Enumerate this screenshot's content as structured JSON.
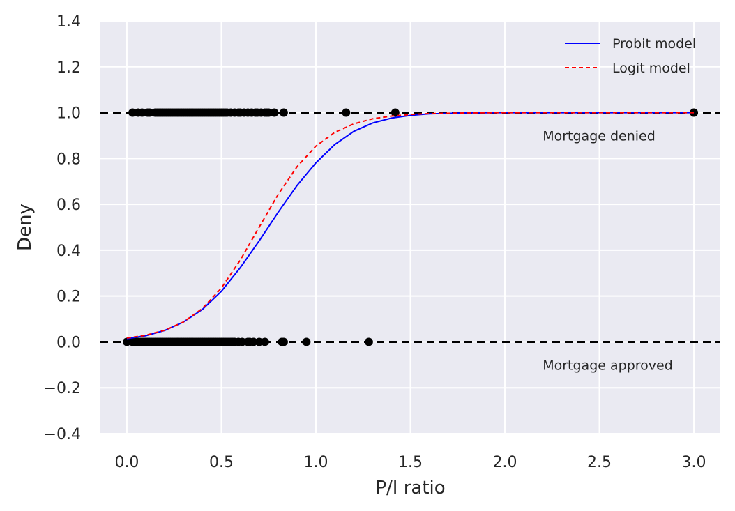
{
  "chart_data": {
    "type": "line",
    "xlabel": "P/I ratio",
    "ylabel": "Deny",
    "xlim": [
      -0.14,
      3.14
    ],
    "ylim": [
      -0.4,
      1.4
    ],
    "xticks": [
      0.0,
      0.5,
      1.0,
      1.5,
      2.0,
      2.5,
      3.0
    ],
    "xtick_labels": [
      "0.0",
      "0.5",
      "1.0",
      "1.5",
      "2.0",
      "2.5",
      "3.0"
    ],
    "yticks": [
      -0.4,
      -0.2,
      0.0,
      0.2,
      0.4,
      0.6,
      0.8,
      1.0,
      1.2,
      1.4
    ],
    "ytick_labels": [
      "−0.4",
      "−0.2",
      "0.0",
      "0.2",
      "0.4",
      "0.6",
      "0.8",
      "1.0",
      "1.2",
      "1.4"
    ],
    "grid": true,
    "background": "#eaeaf2",
    "legend_position": "top-right",
    "series": [
      {
        "name": "Probit model",
        "color": "#0000ff",
        "style": "solid",
        "x": [
          0.0,
          0.1,
          0.2,
          0.3,
          0.4,
          0.5,
          0.6,
          0.7,
          0.8,
          0.9,
          1.0,
          1.1,
          1.2,
          1.3,
          1.4,
          1.5,
          1.6,
          1.8,
          2.0,
          2.5,
          3.0
        ],
        "y": [
          0.014,
          0.027,
          0.05,
          0.087,
          0.142,
          0.221,
          0.324,
          0.441,
          0.565,
          0.682,
          0.781,
          0.861,
          0.918,
          0.955,
          0.976,
          0.988,
          0.995,
          0.999,
          1.0,
          1.0,
          1.0
        ]
      },
      {
        "name": "Logit model",
        "color": "#ff0000",
        "style": "dashed",
        "x": [
          0.0,
          0.1,
          0.2,
          0.3,
          0.4,
          0.5,
          0.6,
          0.7,
          0.8,
          0.9,
          1.0,
          1.1,
          1.2,
          1.3,
          1.4,
          1.5,
          1.6,
          1.8,
          2.0,
          2.5,
          3.0
        ],
        "y": [
          0.017,
          0.029,
          0.051,
          0.087,
          0.146,
          0.235,
          0.357,
          0.501,
          0.643,
          0.764,
          0.854,
          0.914,
          0.951,
          0.973,
          0.985,
          0.992,
          0.996,
          0.999,
          1.0,
          1.0,
          1.0
        ]
      }
    ],
    "observations": {
      "color": "#000000",
      "denied": {
        "y": 1.0,
        "x": [
          0.03,
          0.06,
          0.08,
          0.11,
          0.12,
          0.15,
          0.16,
          0.17,
          0.18,
          0.19,
          0.2,
          0.21,
          0.22,
          0.23,
          0.24,
          0.25,
          0.26,
          0.27,
          0.28,
          0.29,
          0.3,
          0.31,
          0.32,
          0.33,
          0.34,
          0.35,
          0.36,
          0.37,
          0.38,
          0.39,
          0.4,
          0.41,
          0.42,
          0.43,
          0.44,
          0.45,
          0.46,
          0.47,
          0.48,
          0.49,
          0.5,
          0.51,
          0.52,
          0.53,
          0.55,
          0.57,
          0.59,
          0.6,
          0.62,
          0.64,
          0.66,
          0.68,
          0.69,
          0.71,
          0.73,
          0.74,
          0.75,
          0.78,
          0.83,
          1.16,
          1.42,
          3.0
        ]
      },
      "approved": {
        "y": 0.0,
        "x": [
          0.0,
          0.03,
          0.04,
          0.05,
          0.06,
          0.07,
          0.08,
          0.09,
          0.1,
          0.11,
          0.12,
          0.13,
          0.14,
          0.15,
          0.16,
          0.17,
          0.18,
          0.19,
          0.2,
          0.21,
          0.22,
          0.23,
          0.24,
          0.25,
          0.26,
          0.27,
          0.28,
          0.29,
          0.3,
          0.31,
          0.32,
          0.33,
          0.34,
          0.35,
          0.36,
          0.37,
          0.38,
          0.39,
          0.4,
          0.41,
          0.42,
          0.43,
          0.44,
          0.45,
          0.46,
          0.47,
          0.48,
          0.49,
          0.5,
          0.51,
          0.52,
          0.53,
          0.54,
          0.55,
          0.56,
          0.57,
          0.59,
          0.61,
          0.64,
          0.65,
          0.67,
          0.7,
          0.73,
          0.82,
          0.83,
          0.95,
          1.28
        ]
      }
    },
    "reference_lines": [
      {
        "y": 1.0,
        "color": "#000000",
        "style": "dashed"
      },
      {
        "y": 0.0,
        "color": "#000000",
        "style": "dashed"
      }
    ],
    "annotations": [
      {
        "text": "Mortgage denied",
        "x": 2.2,
        "y": 0.9
      },
      {
        "text": "Mortgage approved",
        "x": 2.2,
        "y": -0.1
      }
    ]
  }
}
